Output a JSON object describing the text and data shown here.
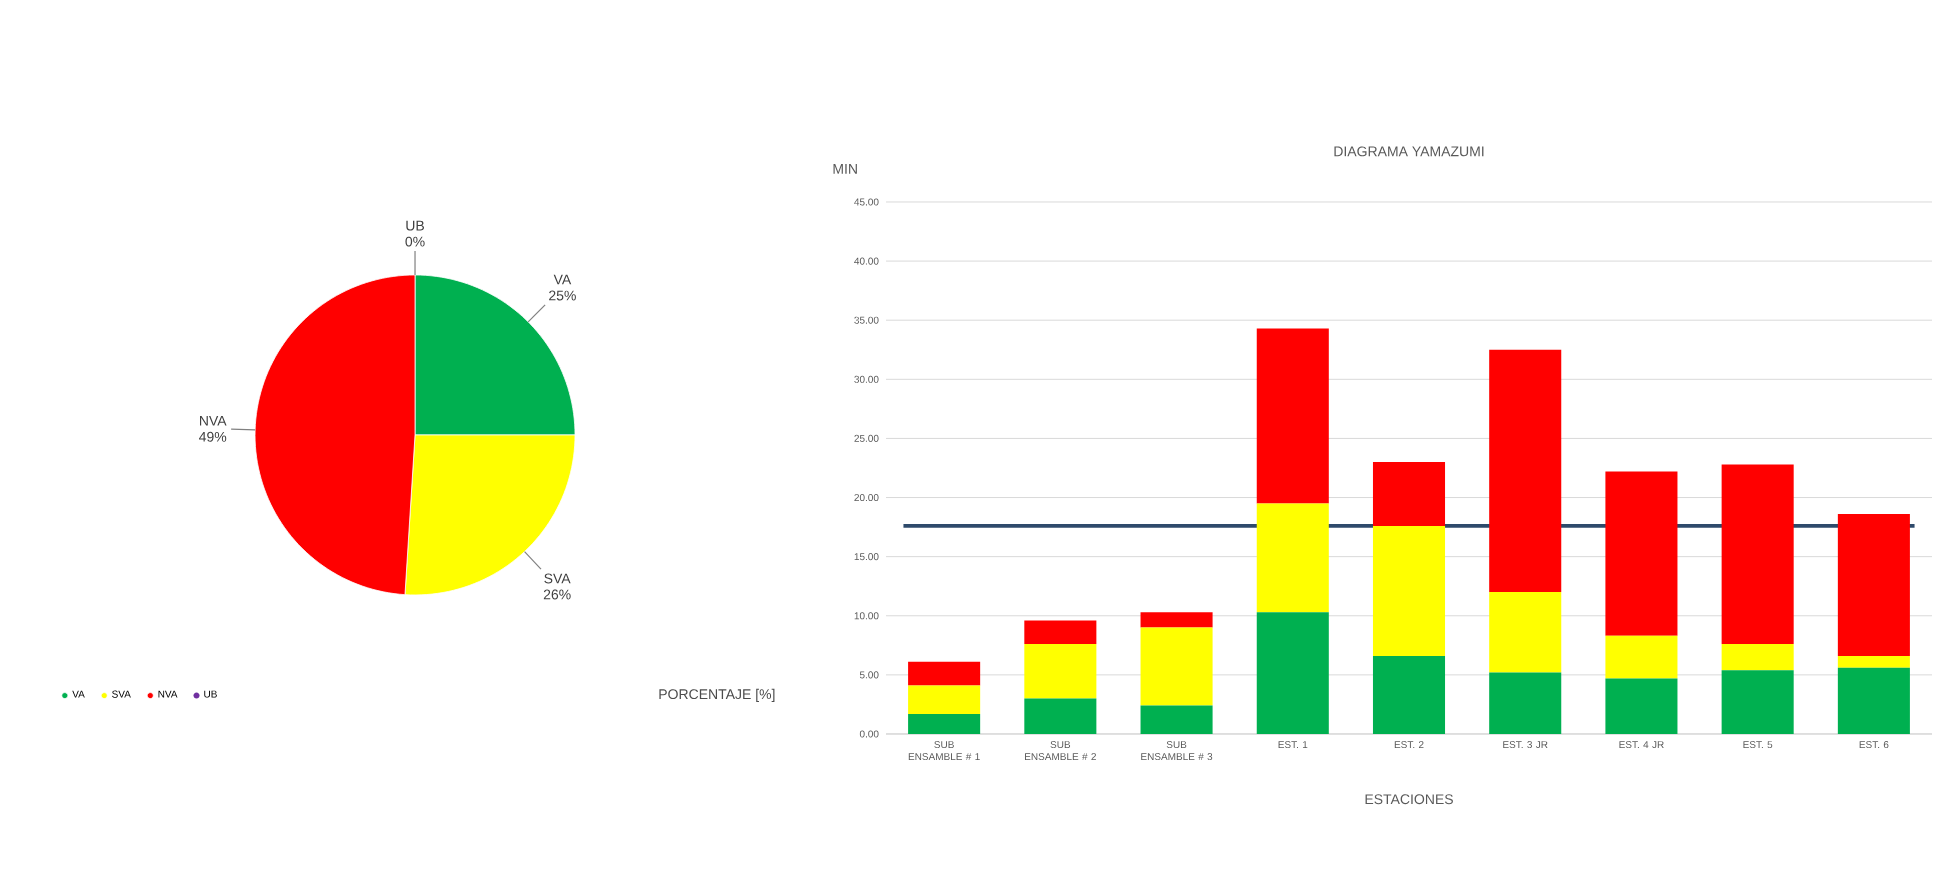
{
  "chart_data": [
    {
      "type": "pie",
      "categories": [
        "VA",
        "SVA",
        "NVA",
        "UB"
      ],
      "values": [
        25,
        26,
        49,
        0
      ],
      "colors": [
        "#00b050",
        "#ffff00",
        "#ff0000",
        "#7030a0"
      ],
      "value_labels": [
        "25%",
        "26%",
        "49%",
        "0%"
      ],
      "legend": "bottom left",
      "annotations": [
        "PORCENTAJE [%]"
      ]
    },
    {
      "type": "bar",
      "stacked": true,
      "title": "DIAGRAMA YAMAZUMI",
      "xlabel": "ESTACIONES",
      "ylabel": "MIN",
      "categories": [
        "SUB ENSAMBLE # 1",
        "SUB ENSAMBLE # 2",
        "SUB ENSAMBLE # 3",
        "EST. 1",
        "EST. 2",
        "EST. 3 JR",
        "EST. 4 JR",
        "EST. 5",
        "EST. 6"
      ],
      "series": [
        {
          "color": "#00b050",
          "values": [
            1.7,
            3.0,
            2.4,
            10.3,
            6.6,
            5.2,
            4.7,
            5.4,
            5.6
          ]
        },
        {
          "color": "#ffff00",
          "values": [
            2.4,
            4.6,
            6.6,
            9.2,
            11.0,
            6.8,
            3.6,
            2.2,
            1.0
          ]
        },
        {
          "color": "#ff0000",
          "values": [
            2.0,
            2.0,
            1.3,
            14.8,
            5.4,
            20.5,
            13.9,
            15.2,
            12.0
          ]
        }
      ],
      "ylim": [
        0,
        45
      ],
      "yticks": [
        {
          "value": 0,
          "label": "0.00"
        },
        {
          "value": 5,
          "label": "5.00"
        },
        {
          "value": 10,
          "label": "10.00"
        },
        {
          "value": 15,
          "label": "15.00"
        },
        {
          "value": 20,
          "label": "20.00"
        },
        {
          "value": 25,
          "label": "25.00"
        },
        {
          "value": 30,
          "label": "30.00"
        },
        {
          "value": 35,
          "label": "35.00"
        },
        {
          "value": 40,
          "label": "40.00"
        },
        {
          "value": 45,
          "label": "45.00"
        }
      ],
      "grid": "y",
      "ref_lines": [
        {
          "axis": "y",
          "value": 17.6,
          "color": "#2e4a6b"
        }
      ]
    }
  ]
}
